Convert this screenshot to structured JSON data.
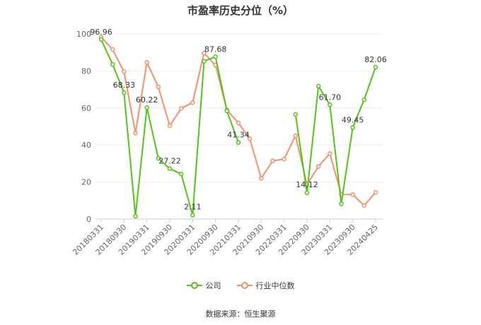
{
  "chart_data": {
    "type": "line",
    "title": "市盈率历史分位（%）",
    "ylim": [
      0,
      100
    ],
    "yticks": [
      0,
      20,
      40,
      60,
      80,
      100
    ],
    "xtick_labels": [
      "20180331",
      "20180930",
      "20190331",
      "20190930",
      "20200331",
      "20200930",
      "20210331",
      "20210930",
      "20220331",
      "20220930",
      "20230331",
      "20230930",
      "20240425"
    ],
    "x": [
      "20180331",
      "20180630",
      "20180930",
      "20181231",
      "20190331",
      "20190630",
      "20190930",
      "20191231",
      "20200331",
      "20200630",
      "20200930",
      "20201231",
      "20210331",
      "20210630",
      "20210930",
      "20211231",
      "20220331",
      "20220630",
      "20220930",
      "20221231",
      "20230331",
      "20230630",
      "20230930",
      "20231231",
      "20240425"
    ],
    "series": [
      {
        "name": "公司",
        "color": "#52c41a",
        "values": [
          96.96,
          83.5,
          68.33,
          1.5,
          60.22,
          32.8,
          27.22,
          24.3,
          2.11,
          85.2,
          87.68,
          58.4,
          41.34,
          null,
          null,
          null,
          null,
          56.5,
          14.12,
          71.8,
          61.7,
          8.2,
          49.45,
          64.5,
          82.06
        ],
        "labels": [
          {
            "index": 0,
            "text": "96.96"
          },
          {
            "index": 2,
            "text": "68.33"
          },
          {
            "index": 4,
            "text": "60.22"
          },
          {
            "index": 6,
            "text": "27.22"
          },
          {
            "index": 8,
            "text": "2.11"
          },
          {
            "index": 10,
            "text": "87.68"
          },
          {
            "index": 12,
            "text": "41.34"
          },
          {
            "index": 18,
            "text": "14.12"
          },
          {
            "index": 20,
            "text": "61.70"
          },
          {
            "index": 22,
            "text": "49.45"
          },
          {
            "index": 24,
            "text": "82.06"
          }
        ]
      },
      {
        "name": "行业中位数",
        "color": "#f4916b",
        "values": [
          98.2,
          91.6,
          79.6,
          46.4,
          84.6,
          71.4,
          50.4,
          59.8,
          62.9,
          89.7,
          83.1,
          58.9,
          51.9,
          43.3,
          22.0,
          31.4,
          32.4,
          45.0,
          18.7,
          28.4,
          35.4,
          13.3,
          13.2,
          7.3,
          14.4
        ]
      }
    ],
    "grid": true,
    "legend": "bottom-center"
  },
  "source": "数据来源：恒生聚源"
}
